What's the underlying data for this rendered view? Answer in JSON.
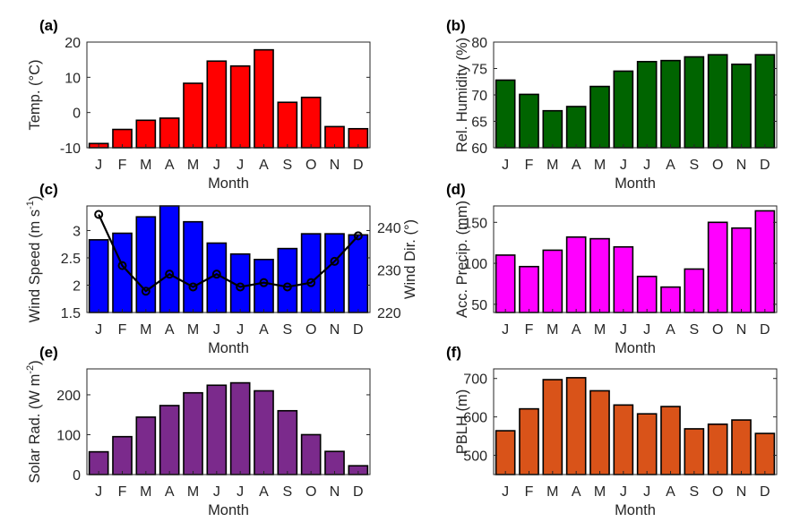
{
  "chart_data": [
    {
      "type": "bar",
      "panel_label": "(a)",
      "categories": [
        "J",
        "F",
        "M",
        "A",
        "M",
        "J",
        "J",
        "A",
        "S",
        "O",
        "N",
        "D"
      ],
      "values": [
        -8.8,
        -4.8,
        -2.2,
        -1.6,
        8.3,
        14.6,
        13.2,
        17.8,
        2.9,
        4.3,
        -4.0,
        -4.6
      ],
      "ylabel": "Temp. (°C)",
      "xlabel": "Month",
      "ylim": [
        -10,
        20
      ],
      "yticks": [
        "-10",
        "0",
        "10",
        "20"
      ],
      "bar_color": "#ff0000"
    },
    {
      "type": "bar",
      "panel_label": "(b)",
      "categories": [
        "J",
        "F",
        "M",
        "A",
        "M",
        "J",
        "J",
        "A",
        "S",
        "O",
        "N",
        "D"
      ],
      "values": [
        72.8,
        70.1,
        67.0,
        67.8,
        71.6,
        74.5,
        76.3,
        76.5,
        77.2,
        77.6,
        75.8,
        77.6
      ],
      "ylabel": "Rel. Humidity (%)",
      "xlabel": "Month",
      "ylim": [
        60,
        80
      ],
      "yticks": [
        "60",
        "65",
        "70",
        "75",
        "80"
      ],
      "bar_color": "#006400"
    },
    {
      "type": "bar",
      "panel_label": "(c)",
      "categories": [
        "J",
        "F",
        "M",
        "A",
        "M",
        "J",
        "J",
        "A",
        "S",
        "O",
        "N",
        "D"
      ],
      "values": [
        2.83,
        2.95,
        3.25,
        3.47,
        3.16,
        2.77,
        2.57,
        2.47,
        2.67,
        2.94,
        2.94,
        2.92
      ],
      "ylabel_parts": [
        "Wind Speed (m s",
        "-1",
        ")"
      ],
      "xlabel": "Month",
      "ylim": [
        1.5,
        3.45
      ],
      "yticks": [
        "1.5",
        "2",
        "2.5",
        "3"
      ],
      "bar_color": "#0000ff",
      "secondary": {
        "type": "line",
        "values": [
          243,
          231,
          225,
          229,
          226,
          229,
          226,
          227,
          226,
          227,
          232,
          238
        ],
        "ylabel": "Wind Dir. (°)",
        "ylim": [
          220,
          245
        ],
        "yticks": [
          "220",
          "230",
          "240"
        ],
        "color": "#000000"
      }
    },
    {
      "type": "bar",
      "panel_label": "(d)",
      "categories": [
        "J",
        "F",
        "M",
        "A",
        "M",
        "J",
        "J",
        "A",
        "S",
        "O",
        "N",
        "D"
      ],
      "values": [
        110,
        96,
        116,
        132,
        130,
        120,
        84,
        71,
        93,
        150,
        143,
        164
      ],
      "ylabel": "Acc. Precip. (mm)",
      "xlabel": "Month",
      "ylim": [
        40,
        170
      ],
      "yticks": [
        "50",
        "100",
        "150"
      ],
      "bar_color": "#ff00ff"
    },
    {
      "type": "bar",
      "panel_label": "(e)",
      "categories": [
        "J",
        "F",
        "M",
        "A",
        "M",
        "J",
        "J",
        "A",
        "S",
        "O",
        "N",
        "D"
      ],
      "values": [
        57,
        95,
        144,
        173,
        205,
        224,
        230,
        210,
        160,
        100,
        58,
        22
      ],
      "ylabel_parts": [
        "Solar Rad. (W m",
        "-2",
        ")"
      ],
      "xlabel": "Month",
      "ylim": [
        0,
        265
      ],
      "yticks": [
        "0",
        "100",
        "200"
      ],
      "bar_color": "#7b2a8c"
    },
    {
      "type": "bar",
      "panel_label": "(f)",
      "categories": [
        "J",
        "F",
        "M",
        "A",
        "M",
        "J",
        "J",
        "A",
        "S",
        "O",
        "N",
        "D"
      ],
      "values": [
        564,
        621,
        697,
        702,
        668,
        631,
        608,
        627,
        569,
        581,
        592,
        557
      ],
      "ylabel": "PBLH (m)",
      "xlabel": "Month",
      "ylim": [
        450,
        725
      ],
      "yticks": [
        "500",
        "600",
        "700"
      ],
      "bar_color": "#d95319"
    }
  ]
}
